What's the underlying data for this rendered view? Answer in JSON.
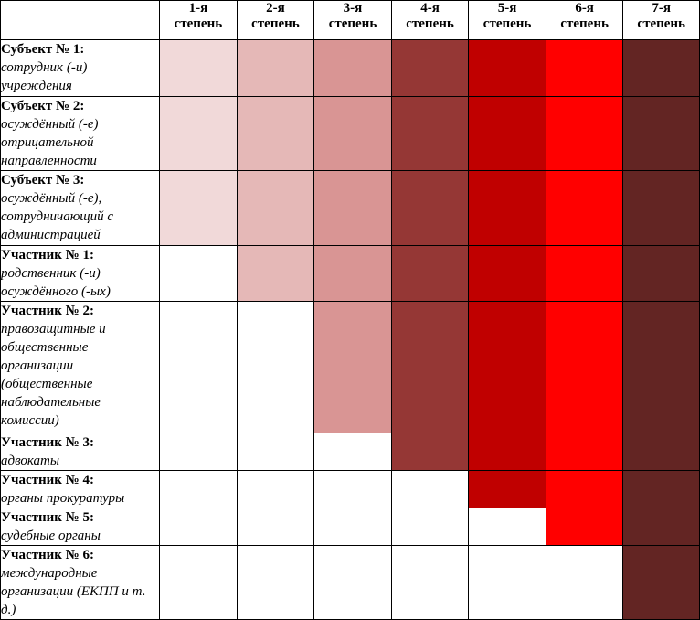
{
  "degrees": [
    {
      "n": "1-я",
      "w": "степень"
    },
    {
      "n": "2-я",
      "w": "степень"
    },
    {
      "n": "3-я",
      "w": "степень"
    },
    {
      "n": "4-я",
      "w": "степень"
    },
    {
      "n": "5-я",
      "w": "степень"
    },
    {
      "n": "6-я",
      "w": "степень"
    },
    {
      "n": "7-я",
      "w": "степень"
    }
  ],
  "degree_colors": [
    "#f1d9d9",
    "#e5b8b7",
    "#d99594",
    "#953735",
    "#c00000",
    "#ff0000",
    "#632523"
  ],
  "empty_color": "#ffffff",
  "rows": [
    {
      "title": "Субъект № 1:",
      "desc": "сотрудник (-и) учреждения",
      "start_degree": 1
    },
    {
      "title": "Субъект № 2:",
      "desc": "осуждённый (-е) отрицательной направленности",
      "start_degree": 1
    },
    {
      "title": "Субъект № 3:",
      "desc": "осуждённый (-е), сотрудничающий с администрацией",
      "start_degree": 1
    },
    {
      "title": "Участник № 1:",
      "desc": "родственник (-и) осуждённого (-ых)",
      "start_degree": 2
    },
    {
      "title": "Участник № 2:",
      "desc": "правозащитные и общественные организации (общественные наблюдательные комиссии)",
      "start_degree": 3
    },
    {
      "title": "Участник № 3:",
      "desc": "адвокаты",
      "start_degree": 4
    },
    {
      "title": "Участник № 4:",
      "desc": "органы прокуратуры",
      "start_degree": 5
    },
    {
      "title": "Участник № 5:",
      "desc": "судебные органы",
      "start_degree": 6
    },
    {
      "title": "Участник № 6:",
      "desc": "международные организации (ЕКПП и т. д.)",
      "start_degree": 7
    }
  ]
}
